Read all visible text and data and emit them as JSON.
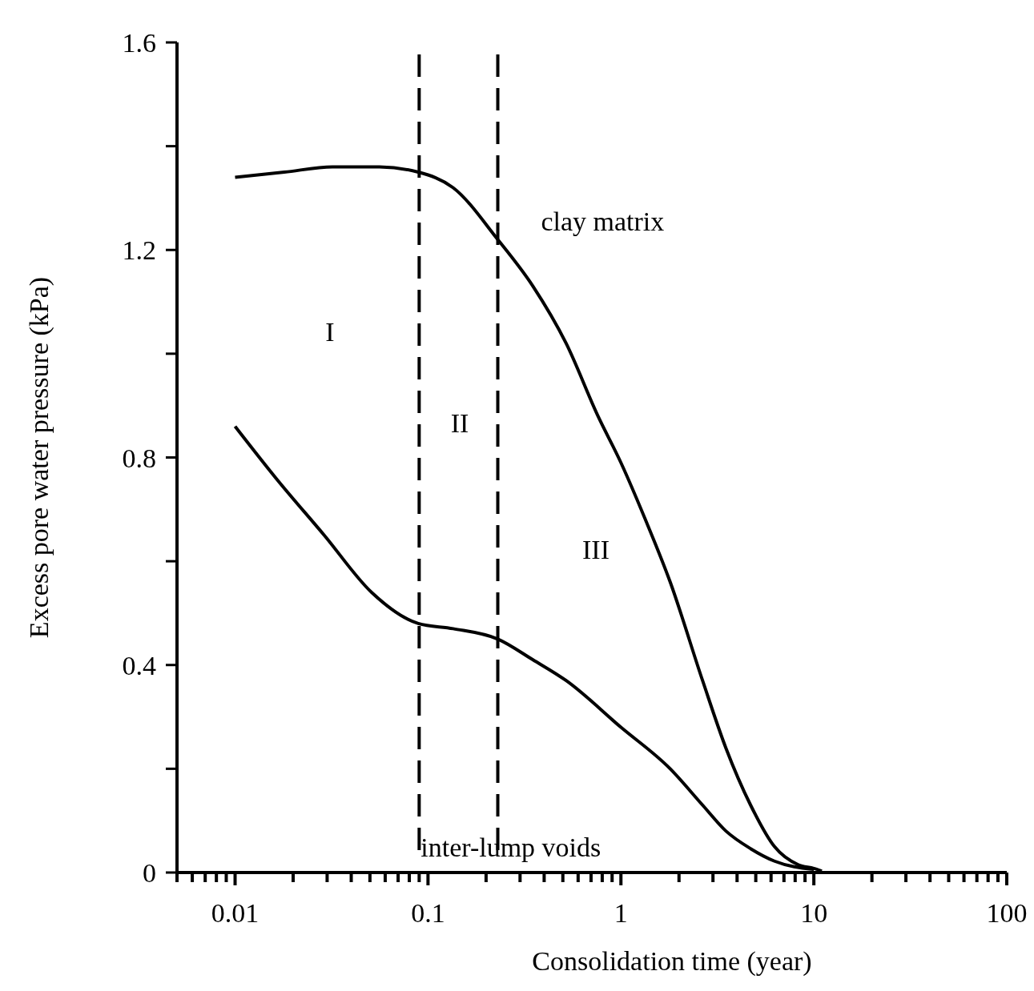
{
  "chart_data": {
    "type": "line",
    "xlabel": "Consolidation time (year)",
    "ylabel": "Excess pore water pressure (kPa)",
    "log": "x",
    "grid": false,
    "legend": false,
    "marker": "none",
    "line_style": "solid",
    "xlim": [
      0.005,
      100
    ],
    "ylim": [
      0,
      1.6
    ],
    "xticks": [
      {
        "value": 0.005,
        "label": null
      },
      {
        "value": 0.006,
        "label": null
      },
      {
        "value": 0.007,
        "label": null
      },
      {
        "value": 0.008,
        "label": null
      },
      {
        "value": 0.009,
        "label": null
      },
      0.01,
      {
        "value": 0.02,
        "label": null
      },
      {
        "value": 0.03,
        "label": null
      },
      {
        "value": 0.04,
        "label": null
      },
      {
        "value": 0.05,
        "label": null
      },
      {
        "value": 0.06,
        "label": null
      },
      {
        "value": 0.07,
        "label": null
      },
      {
        "value": 0.08,
        "label": null
      },
      {
        "value": 0.09,
        "label": null
      },
      0.1,
      {
        "value": 0.2,
        "label": null
      },
      {
        "value": 0.3,
        "label": null
      },
      {
        "value": 0.4,
        "label": null
      },
      {
        "value": 0.5,
        "label": null
      },
      {
        "value": 0.6,
        "label": null
      },
      {
        "value": 0.7,
        "label": null
      },
      {
        "value": 0.8,
        "label": null
      },
      {
        "value": 0.9,
        "label": null
      },
      1,
      {
        "value": 2,
        "label": null
      },
      {
        "value": 3,
        "label": null
      },
      {
        "value": 4,
        "label": null
      },
      {
        "value": 5,
        "label": null
      },
      {
        "value": 6,
        "label": null
      },
      {
        "value": 7,
        "label": null
      },
      {
        "value": 8,
        "label": null
      },
      {
        "value": 9,
        "label": null
      },
      10,
      {
        "value": 20,
        "label": null
      },
      {
        "value": 30,
        "label": null
      },
      {
        "value": 40,
        "label": null
      },
      {
        "value": 50,
        "label": null
      },
      {
        "value": 60,
        "label": null
      },
      {
        "value": 70,
        "label": null
      },
      {
        "value": 80,
        "label": null
      },
      {
        "value": 90,
        "label": null
      },
      100
    ],
    "yticks": [
      0,
      {
        "value": 0.2,
        "label": null
      },
      0.4,
      {
        "value": 0.6,
        "label": null
      },
      0.8,
      {
        "value": 1.0,
        "label": null
      },
      1.2,
      {
        "value": 1.4,
        "label": null
      },
      1.6
    ],
    "series": [
      {
        "name": "clay matrix",
        "color": "#000000",
        "x": [
          0.01,
          0.018,
          0.032,
          0.056,
          0.089,
          0.135,
          0.23,
          0.35,
          0.52,
          0.76,
          1,
          1.34,
          1.8,
          2.65,
          3.5,
          4.7,
          6.25,
          8.3,
          10,
          11
        ],
        "values": [
          1.34,
          1.35,
          1.36,
          1.36,
          1.35,
          1.32,
          1.22,
          1.13,
          1.02,
          0.88,
          0.79,
          0.68,
          0.56,
          0.37,
          0.24,
          0.13,
          0.05,
          0.015,
          0.008,
          0.003
        ]
      },
      {
        "name": "inter-lump voids",
        "color": "#000000",
        "x": [
          0.01,
          0.0163,
          0.029,
          0.051,
          0.089,
          0.135,
          0.23,
          0.35,
          0.52,
          1,
          1.8,
          2.65,
          3.5,
          4.7,
          6.25,
          10
        ],
        "values": [
          0.86,
          0.76,
          0.65,
          0.54,
          0.48,
          0.47,
          0.45,
          0.41,
          0.37,
          0.28,
          0.2,
          0.13,
          0.08,
          0.046,
          0.022,
          0.006
        ]
      }
    ],
    "ref_lines": [
      {
        "axis": "x",
        "value": 0.09,
        "color": "#000000",
        "line_style": "dashed"
      },
      {
        "axis": "x",
        "value": 0.23,
        "color": "#000000",
        "line_style": "dashed"
      }
    ],
    "annotations": [
      "I",
      "II",
      "III"
    ]
  }
}
